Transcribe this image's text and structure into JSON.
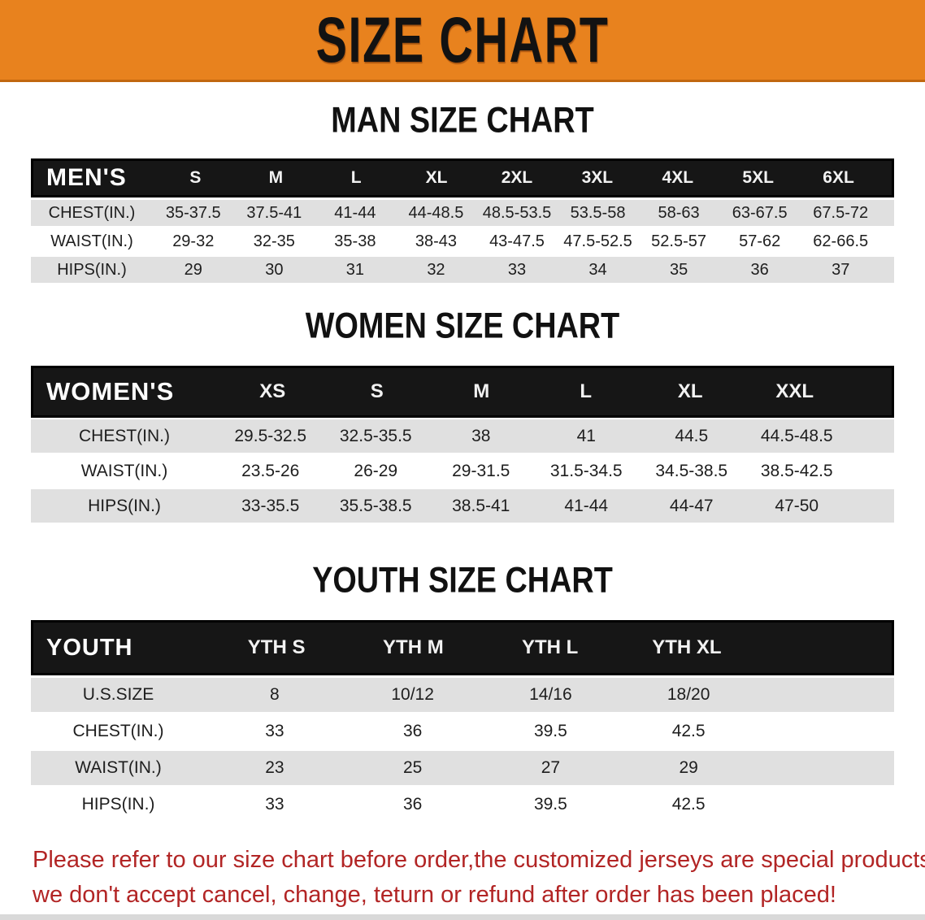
{
  "banner": {
    "title": "SIZE CHART"
  },
  "colors": {
    "banner_bg": "#E8821E",
    "banner_edge": "#C1670F",
    "table_header_bg": "#161616",
    "row_stripe": "#E0E0E0",
    "note_red": "#B22525"
  },
  "men": {
    "heading": "MAN SIZE CHART",
    "header": {
      "label": "MEN'S",
      "sizes": [
        "S",
        "M",
        "L",
        "XL",
        "2XL",
        "3XL",
        "4XL",
        "5XL",
        "6XL"
      ]
    },
    "rows": [
      {
        "label": "CHEST(IN.)",
        "values": [
          "35-37.5",
          "37.5-41",
          "41-44",
          "44-48.5",
          "48.5-53.5",
          "53.5-58",
          "58-63",
          "63-67.5",
          "67.5-72"
        ]
      },
      {
        "label": "WAIST(IN.)",
        "values": [
          "29-32",
          "32-35",
          "35-38",
          "38-43",
          "43-47.5",
          "47.5-52.5",
          "52.5-57",
          "57-62",
          "62-66.5"
        ]
      },
      {
        "label": "HIPS(IN.)",
        "values": [
          "29",
          "30",
          "31",
          "32",
          "33",
          "34",
          "35",
          "36",
          "37"
        ]
      }
    ]
  },
  "women": {
    "heading": "WOMEN SIZE CHART",
    "header": {
      "label": "WOMEN'S",
      "sizes": [
        "XS",
        "S",
        "M",
        "L",
        "XL",
        "XXL"
      ]
    },
    "rows": [
      {
        "label": "CHEST(IN.)",
        "values": [
          "29.5-32.5",
          "32.5-35.5",
          "38",
          "41",
          "44.5",
          "44.5-48.5"
        ]
      },
      {
        "label": "WAIST(IN.)",
        "values": [
          "23.5-26",
          "26-29",
          "29-31.5",
          "31.5-34.5",
          "34.5-38.5",
          "38.5-42.5"
        ]
      },
      {
        "label": "HIPS(IN.)",
        "values": [
          "33-35.5",
          "35.5-38.5",
          "38.5-41",
          "41-44",
          "44-47",
          "47-50"
        ]
      }
    ]
  },
  "youth": {
    "heading": "YOUTH SIZE CHART",
    "header": {
      "label": "YOUTH",
      "sizes": [
        "YTH S",
        "YTH M",
        "YTH L",
        "YTH XL"
      ]
    },
    "rows": [
      {
        "label": "U.S.SIZE",
        "values": [
          "8",
          "10/12",
          "14/16",
          "18/20"
        ]
      },
      {
        "label": "CHEST(IN.)",
        "values": [
          "33",
          "36",
          "39.5",
          "42.5"
        ]
      },
      {
        "label": "WAIST(IN.)",
        "values": [
          "23",
          "25",
          "27",
          "29"
        ]
      },
      {
        "label": "HIPS(IN.)",
        "values": [
          "33",
          "36",
          "39.5",
          "42.5"
        ]
      }
    ]
  },
  "note": {
    "lines": [
      "Please refer to our size chart before order,the customized jerseys are special products,",
      "we don't accept cancel, change, teturn or refund after order has been placed!"
    ]
  }
}
